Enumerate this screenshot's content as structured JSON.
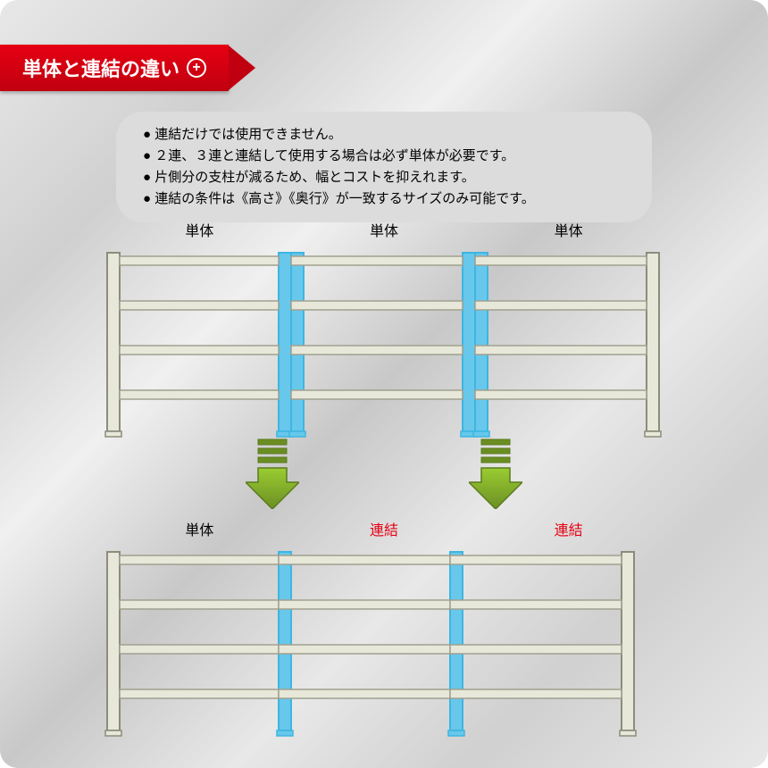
{
  "header": {
    "title": "単体と連結の違い"
  },
  "notes": {
    "items": [
      "連結だけでは使用できません。",
      "２連、３連と連結して使用する場合は必ず単体が必要です。",
      "片側分の支柱が減るため、幅とコストを抑えれます。",
      "連結の条件は《高さ》《奥行》が一致するサイズのみ可能です。"
    ]
  },
  "labels": {
    "upper": [
      "単体",
      "単体",
      "単体"
    ],
    "lower": [
      "単体",
      "連結",
      "連結"
    ],
    "lower_colors": [
      "#000000",
      "#e60012",
      "#e60012"
    ]
  },
  "diagram": {
    "shelf_stroke": "#8c8c7a",
    "shelf_fill": "#e8e8da",
    "shelf_line": "#a0a090",
    "highlight_fill": "#67c8ec",
    "highlight_stroke": "#3fb5e0",
    "arrow_fill_start": "#9acd32",
    "arrow_fill_end": "#6b8e23",
    "arrow_stripes": "#5a7a1e",
    "background": "#ffffff",
    "unit_width": 206,
    "unit_height": 200,
    "post_width": 14,
    "shelf_gap": 50,
    "n_shelves": 4,
    "lower_unit_widths": [
      206,
      206,
      206
    ]
  }
}
